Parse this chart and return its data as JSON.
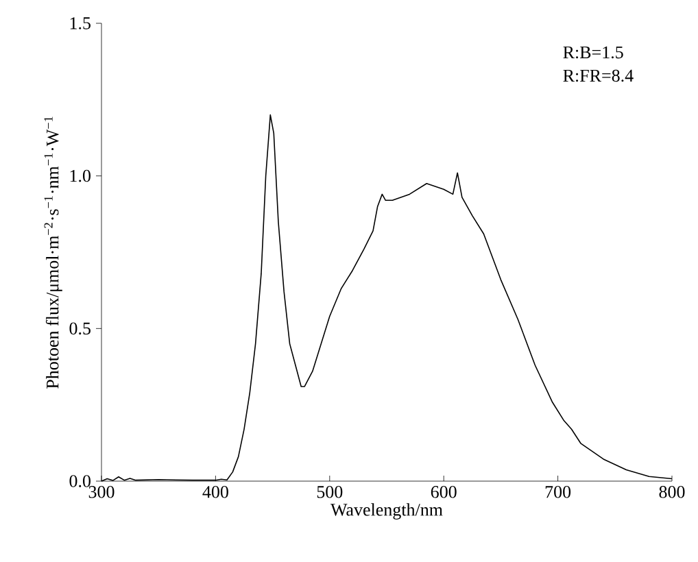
{
  "chart_data": {
    "type": "line",
    "xlabel": "Wavelength/nm",
    "ylabel": "Photoen flux/μmol·m$^{−2}$·s$^{−1}$·nm$^{−1}$·W$^{−1}$",
    "annotations": [
      "R:B=1.5",
      "R:FR=8.4"
    ],
    "xlim": [
      300,
      800
    ],
    "ylim": [
      0,
      1.5
    ],
    "xticks": [
      300,
      400,
      500,
      600,
      700,
      800
    ],
    "yticks": [
      {
        "value": 0,
        "label": "0.0"
      },
      0.5,
      {
        "value": 1,
        "label": "1.0"
      },
      1.5
    ],
    "marker": "none",
    "line_style": "solid",
    "series": [
      {
        "color": "#000000",
        "x": [
          300,
          305,
          310,
          315,
          320,
          325,
          330,
          350,
          380,
          400,
          405,
          410,
          415,
          420,
          425,
          430,
          435,
          440,
          444,
          448,
          451,
          455,
          460,
          465,
          470,
          475,
          478,
          485,
          490,
          500,
          510,
          520,
          530,
          538,
          542,
          546,
          549,
          555,
          570,
          585,
          600,
          608,
          612,
          616,
          625,
          635,
          650,
          665,
          680,
          695,
          705,
          712,
          720,
          740,
          760,
          780,
          800
        ],
        "values": [
          0.0,
          0.008,
          0.002,
          0.014,
          0.003,
          0.009,
          0.003,
          0.005,
          0.003,
          0.003,
          0.006,
          0.004,
          0.03,
          0.08,
          0.17,
          0.29,
          0.45,
          0.68,
          1.0,
          1.2,
          1.14,
          0.85,
          0.62,
          0.45,
          0.38,
          0.31,
          0.31,
          0.36,
          0.42,
          0.54,
          0.63,
          0.69,
          0.76,
          0.82,
          0.9,
          0.94,
          0.92,
          0.92,
          0.94,
          0.975,
          0.956,
          0.94,
          1.01,
          0.93,
          0.87,
          0.81,
          0.66,
          0.53,
          0.38,
          0.26,
          0.2,
          0.17,
          0.124,
          0.072,
          0.037,
          0.015,
          0.008
        ]
      }
    ]
  }
}
